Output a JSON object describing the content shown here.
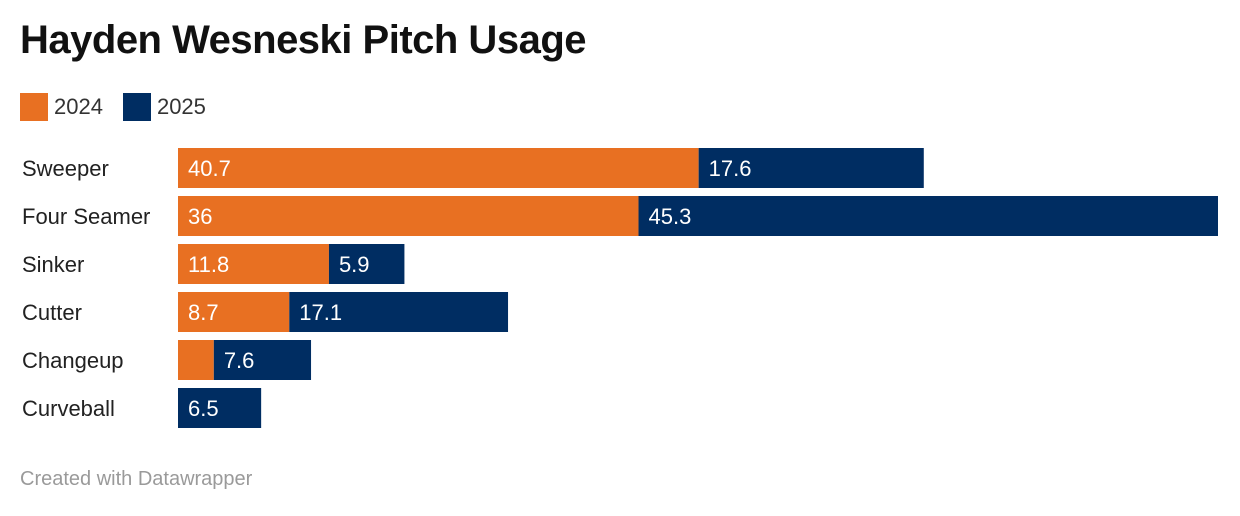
{
  "title": "Hayden Wesneski Pitch Usage",
  "footer": "Created with Datawrapper",
  "colors": {
    "2024": "#e87022",
    "2025": "#002d62"
  },
  "chart_data": {
    "type": "bar",
    "orientation": "horizontal",
    "stacked": true,
    "title": "Hayden Wesneski Pitch Usage",
    "legend_position": "top-left",
    "grid": false,
    "categories": [
      "Sweeper",
      "Four Seamer",
      "Sinker",
      "Cutter",
      "Changeup",
      "Curveball"
    ],
    "series": [
      {
        "name": "2024",
        "color": "#e87022",
        "values": [
          40.7,
          36,
          11.8,
          8.7,
          2.8,
          0
        ],
        "labels": [
          "40.7",
          "36",
          "11.8",
          "8.7",
          "",
          ""
        ]
      },
      {
        "name": "2025",
        "color": "#002d62",
        "values": [
          17.6,
          45.3,
          5.9,
          17.1,
          7.6,
          6.5
        ],
        "labels": [
          "17.6",
          "45.3",
          "5.9",
          "17.1",
          "7.6",
          "6.5"
        ]
      }
    ],
    "xlim": [
      0,
      81.3
    ]
  }
}
